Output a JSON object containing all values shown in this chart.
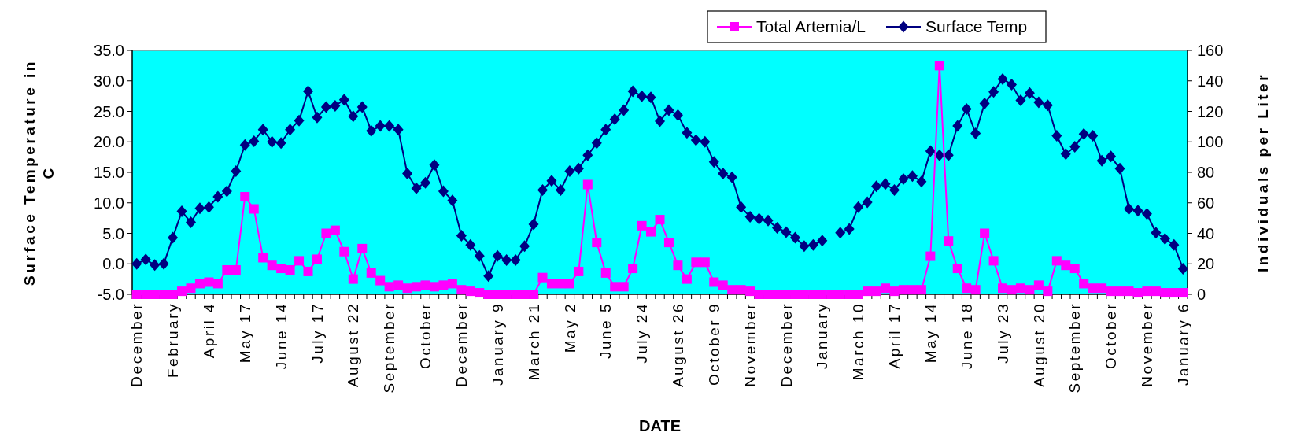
{
  "chart_data": {
    "type": "line",
    "xlabel": "DATE",
    "ylabel": "Surface Temperature in C",
    "y2label": "Individuals per Liter",
    "categories": [
      "December",
      null,
      null,
      null,
      "February",
      null,
      null,
      null,
      "April 4",
      null,
      null,
      null,
      "May 17",
      null,
      null,
      null,
      "June 14",
      null,
      null,
      null,
      "July 17",
      null,
      null,
      null,
      "August 22",
      null,
      null,
      null,
      "September",
      null,
      null,
      null,
      "October",
      null,
      null,
      null,
      "December",
      null,
      null,
      null,
      "January 9",
      null,
      null,
      null,
      "March 21",
      null,
      null,
      null,
      "May 2",
      null,
      null,
      null,
      "June 5",
      null,
      null,
      null,
      "July 24",
      null,
      null,
      null,
      "August 26",
      null,
      null,
      null,
      "October 9",
      null,
      null,
      null,
      "November",
      null,
      null,
      null,
      "December",
      null,
      null,
      null,
      "January",
      null,
      null,
      null,
      "March 10",
      null,
      null,
      null,
      "April 17",
      null,
      null,
      null,
      "May 14",
      null,
      null,
      null,
      "June 18",
      null,
      null,
      null,
      "July 23",
      null,
      null,
      null,
      "August 20",
      null,
      null,
      null,
      "September",
      null,
      null,
      null,
      "October",
      null,
      null,
      null,
      "November",
      null,
      null,
      null,
      "January 6"
    ],
    "series": [
      {
        "name": "Total Artemia/L",
        "color": "#ff00ff",
        "axis": "y2",
        "marker": "square",
        "values": [
          0,
          0,
          0,
          0,
          0,
          2,
          4,
          7,
          8,
          7,
          16,
          16,
          64,
          56,
          24,
          19,
          17,
          16,
          22,
          15,
          23,
          40,
          42,
          28,
          10,
          30,
          14,
          9,
          5,
          6,
          4,
          5,
          6,
          5,
          6,
          7,
          3,
          2,
          1,
          0,
          0,
          0,
          0,
          0,
          0,
          11,
          7,
          7,
          7,
          15,
          72,
          34,
          14,
          5,
          5,
          17,
          45,
          41,
          49,
          34,
          19,
          10,
          21,
          21,
          8,
          6,
          3,
          3,
          2,
          0,
          0,
          0,
          0,
          0,
          0,
          0,
          0,
          0,
          0,
          0,
          0,
          2,
          2,
          4,
          2,
          3,
          3,
          3,
          25,
          150,
          35,
          17,
          4,
          3,
          40,
          22,
          4,
          3,
          4,
          3,
          6,
          2,
          22,
          19,
          17,
          7,
          4,
          4,
          2,
          2,
          2,
          1,
          2,
          2,
          1,
          1,
          1
        ]
      },
      {
        "name": "Surface Temp",
        "color": "#000080",
        "axis": "y",
        "marker": "diamond",
        "values": [
          0.0,
          0.7,
          -0.2,
          0.0,
          4.3,
          8.6,
          6.8,
          9.1,
          9.3,
          11.0,
          11.9,
          15.2,
          19.5,
          20.1,
          22.0,
          20.0,
          19.8,
          22.0,
          23.5,
          28.3,
          24.0,
          25.7,
          25.9,
          26.9,
          24.2,
          25.7,
          21.8,
          22.6,
          22.6,
          22.0,
          14.8,
          12.4,
          13.3,
          16.2,
          11.9,
          10.4,
          4.6,
          3.1,
          1.3,
          -2.0,
          1.3,
          0.6,
          0.6,
          2.9,
          6.5,
          12.1,
          13.6,
          12.1,
          15.2,
          15.6,
          17.8,
          19.8,
          22.0,
          23.7,
          25.2,
          28.3,
          27.5,
          27.3,
          23.4,
          25.2,
          24.4,
          21.5,
          20.3,
          20.0,
          16.7,
          14.8,
          14.2,
          9.3,
          7.7,
          7.4,
          7.1,
          5.9,
          5.2,
          4.3,
          2.9,
          3.1,
          3.8,
          null,
          5.1,
          5.7,
          9.3,
          10.1,
          12.7,
          13.1,
          12.1,
          13.9,
          14.4,
          13.5,
          18.5,
          17.8,
          17.8,
          22.6,
          25.4,
          21.4,
          26.3,
          28.2,
          30.3,
          29.4,
          26.8,
          28.0,
          26.5,
          26.0,
          21.0,
          18.0,
          19.2,
          21.3,
          21.0,
          16.9,
          17.6,
          15.6,
          9.0,
          8.7,
          8.2,
          5.1,
          4.1,
          3.1,
          -0.8
        ]
      }
    ],
    "ylim": [
      -5,
      35
    ],
    "yticks": [
      {
        "value": -5,
        "label": "-5.0"
      },
      {
        "value": 0,
        "label": "0.0"
      },
      {
        "value": 5,
        "label": "5.0"
      },
      {
        "value": 10,
        "label": "10.0"
      },
      {
        "value": 15,
        "label": "15.0"
      },
      {
        "value": 20,
        "label": "20.0"
      },
      {
        "value": 25,
        "label": "25.0"
      },
      {
        "value": 30,
        "label": "30.0"
      },
      {
        "value": 35,
        "label": "35.0"
      }
    ],
    "y2lim": [
      0,
      160
    ],
    "y2ticks": [
      0,
      20,
      40,
      60,
      80,
      100,
      120,
      140,
      160
    ],
    "legend": "top",
    "line_style": "solid"
  }
}
